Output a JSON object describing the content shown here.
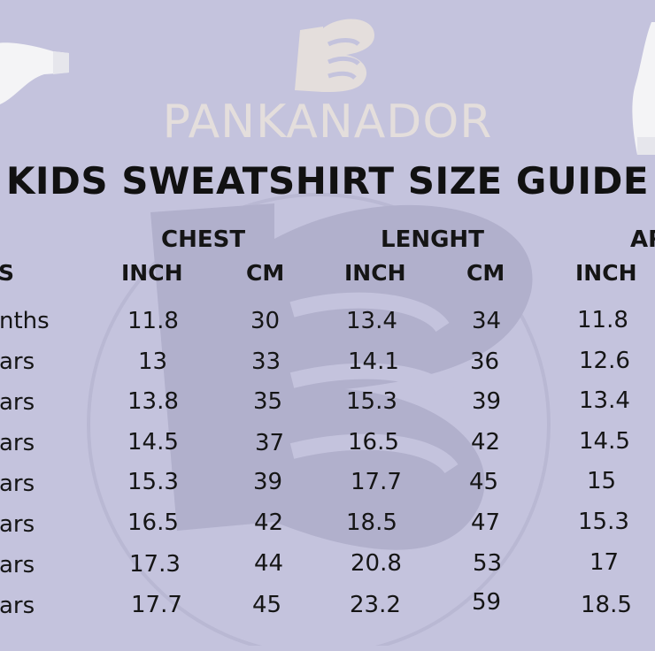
{
  "brand": "PANKANADOR",
  "title": "KIDS SWEATSHIRT SIZE GUIDE",
  "groups": {
    "chest": "CHEST",
    "length": "LENGHT",
    "arm": "AR"
  },
  "subheaders": {
    "size": "S",
    "inch": "INCH",
    "cm": "CM"
  },
  "colors": {
    "background": "#c4c3dd",
    "brand_text": "#e4dedc",
    "title_text": "#111111"
  },
  "rows": [
    {
      "age": "nths",
      "chest_inch": "11.8",
      "chest_cm": "30",
      "length_inch": "13.4",
      "length_cm": "34",
      "arm_inch": "11.8"
    },
    {
      "age": "ars",
      "chest_inch": "13",
      "chest_cm": "33",
      "length_inch": "14.1",
      "length_cm": "36",
      "arm_inch": "12.6"
    },
    {
      "age": "ars",
      "chest_inch": "13.8",
      "chest_cm": "35",
      "length_inch": "15.3",
      "length_cm": "39",
      "arm_inch": "13.4"
    },
    {
      "age": "ars",
      "chest_inch": "14.5",
      "chest_cm": "37",
      "length_inch": "16.5",
      "length_cm": "42",
      "arm_inch": "14.5"
    },
    {
      "age": "ars",
      "chest_inch": "15.3",
      "chest_cm": "39",
      "length_inch": "17.7",
      "length_cm": "45",
      "arm_inch": "15"
    },
    {
      "age": "ars",
      "chest_inch": "16.5",
      "chest_cm": "42",
      "length_inch": "18.5",
      "length_cm": "47",
      "arm_inch": "15.3"
    },
    {
      "age": "ars",
      "chest_inch": "17.3",
      "chest_cm": "44",
      "length_inch": "20.8",
      "length_cm": "53",
      "arm_inch": "17"
    },
    {
      "age": "ars",
      "chest_inch": "17.7",
      "chest_cm": "45",
      "length_inch": "23.2",
      "length_cm": "59",
      "arm_inch": "18.5"
    }
  ]
}
